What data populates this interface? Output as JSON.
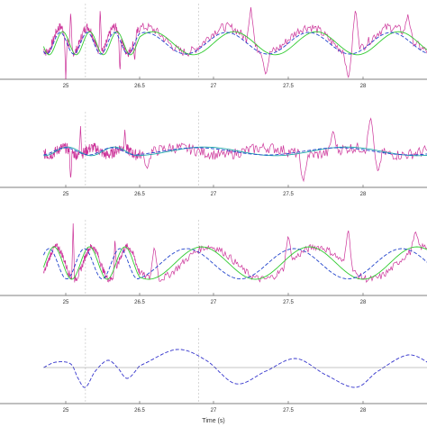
{
  "figure": {
    "xlabel": "Time (s)",
    "shared_x_ticks": [
      "25",
      "26.5",
      "27",
      "27.5",
      "28"
    ],
    "vertical_markers_x": [
      25.4,
      26.9
    ],
    "colors": {
      "axis": "#555555",
      "grid": "#bfbfbf",
      "signal": "#cc3399",
      "fit_green": "#33cc33",
      "fit_blue": "#2244cc",
      "fit_cyan": "#22aaaa",
      "bottom_trace": "#3333cc"
    }
  },
  "chart_data": [
    {
      "type": "line",
      "xlim": [
        24.55,
        28.45
      ],
      "ylim": [
        -1,
        1
      ],
      "grid": "vertical markers only",
      "series": [
        {
          "kind": "noisy",
          "color": "#cc3399",
          "amp": 0.35,
          "period": 0.55,
          "phase": 0.0,
          "offset": 0.1,
          "noise": 0.25,
          "spikes": [
            [
              25.0,
              -1.0
            ],
            [
              25.1,
              0.9
            ],
            [
              25.7,
              1.0
            ],
            [
              26.1,
              -0.8
            ],
            [
              26.4,
              -0.5
            ],
            [
              27.25,
              1.0
            ],
            [
              27.35,
              -0.9
            ],
            [
              27.9,
              -1.0
            ],
            [
              27.95,
              1.0
            ],
            [
              28.3,
              0.8
            ]
          ]
        },
        {
          "kind": "smooth",
          "color": "#33cc33",
          "amp": 0.32,
          "period": 0.55,
          "phase": 0.05,
          "offset": 0.0
        },
        {
          "kind": "smooth",
          "color": "#2244cc",
          "amp": 0.3,
          "period": 0.55,
          "phase": 0.0,
          "offset": 0.0,
          "dash": "4,2"
        }
      ]
    },
    {
      "type": "line",
      "xlim": [
        24.55,
        28.45
      ],
      "ylim": [
        -1,
        1
      ],
      "grid": "vertical markers only",
      "series": [
        {
          "kind": "noisy",
          "color": "#cc3399",
          "amp": 0.1,
          "period": 0.6,
          "phase": 0.2,
          "offset": 0.0,
          "noise": 0.3,
          "spikes": [
            [
              25.1,
              -0.8
            ],
            [
              25.3,
              0.7
            ],
            [
              26.2,
              0.6
            ],
            [
              26.55,
              -0.5
            ],
            [
              27.6,
              -0.9
            ],
            [
              27.8,
              0.6
            ],
            [
              28.05,
              1.0
            ],
            [
              28.1,
              -0.6
            ]
          ]
        },
        {
          "kind": "smooth",
          "color": "#22aaaa",
          "amp": 0.12,
          "period": 0.95,
          "phase": 0.1,
          "offset": 0.0
        },
        {
          "kind": "smooth",
          "color": "#2244cc",
          "amp": 0.1,
          "period": 0.95,
          "phase": 0.05,
          "offset": 0.0,
          "dash": "4,2"
        }
      ]
    },
    {
      "type": "line",
      "xlim": [
        24.55,
        28.45
      ],
      "ylim": [
        -1,
        1
      ],
      "grid": "vertical markers only",
      "series": [
        {
          "kind": "noisy",
          "color": "#cc3399",
          "amp": 0.45,
          "period": 0.72,
          "phase": 0.15,
          "offset": -0.1,
          "noise": 0.2,
          "spikes": [
            [
              25.15,
              1.0
            ],
            [
              26.0,
              0.6
            ],
            [
              26.6,
              0.4
            ],
            [
              27.5,
              0.7
            ],
            [
              27.9,
              0.9
            ],
            [
              28.35,
              0.8
            ]
          ]
        },
        {
          "kind": "smooth",
          "color": "#33cc33",
          "amp": 0.45,
          "period": 0.72,
          "phase": 0.1,
          "offset": -0.1
        },
        {
          "kind": "smooth",
          "color": "#2244cc",
          "amp": 0.42,
          "period": 0.72,
          "phase": 0.0,
          "offset": -0.12,
          "dash": "4,2"
        }
      ]
    },
    {
      "type": "line",
      "xlim": [
        24.55,
        28.45
      ],
      "ylim": [
        -1,
        1
      ],
      "grid": "vertical markers only",
      "series": [
        {
          "kind": "modulated",
          "color": "#3333cc",
          "dash": "4,2",
          "points": [
            [
              24.55,
              0.0
            ],
            [
              24.8,
              0.15
            ],
            [
              25.1,
              0.1
            ],
            [
              25.25,
              -0.3
            ],
            [
              25.4,
              -0.55
            ],
            [
              25.6,
              -0.1
            ],
            [
              25.85,
              0.2
            ],
            [
              26.05,
              0.0
            ],
            [
              26.25,
              -0.3
            ],
            [
              26.5,
              0.05
            ],
            [
              26.75,
              0.5
            ],
            [
              26.95,
              0.2
            ],
            [
              27.15,
              -0.45
            ],
            [
              27.35,
              -0.1
            ],
            [
              27.55,
              0.25
            ],
            [
              27.75,
              -0.2
            ],
            [
              27.95,
              -0.55
            ],
            [
              28.1,
              -0.1
            ],
            [
              28.3,
              0.35
            ],
            [
              28.45,
              0.1
            ]
          ]
        },
        {
          "kind": "flat",
          "color": "#888888",
          "value": 0.0
        }
      ]
    }
  ]
}
